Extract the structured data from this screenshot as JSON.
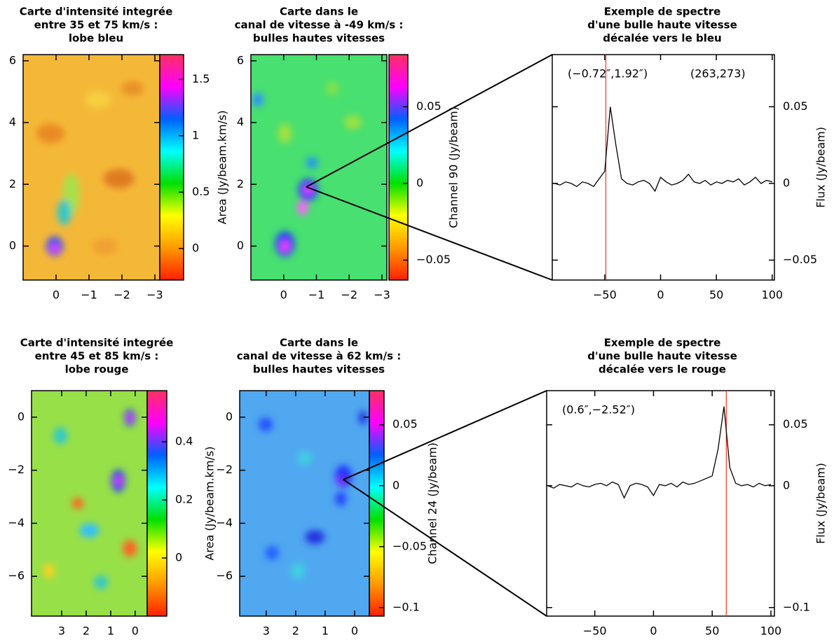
{
  "chart_data": [
    {
      "type": "heatmap",
      "title": [
        "Carte d'intensité integrée",
        "entre 35 et 75 km/s :",
        "lobe bleu"
      ],
      "xlim": [
        1.0,
        -3.15
      ],
      "xticks": [
        0,
        {
          "value": -1,
          "label": "−1"
        },
        {
          "value": -2,
          "label": "−2"
        },
        {
          "value": -3,
          "label": "−3"
        }
      ],
      "ylim": [
        -1.1,
        6.2
      ],
      "yticks": [
        0,
        2,
        4,
        6
      ],
      "colorbar": {
        "lim": [
          -0.28,
          1.72
        ],
        "ticks": [
          0,
          0.5,
          1,
          1.5
        ]
      },
      "colormap": [
        "#ff2000",
        "#ff9900",
        "#ffff00",
        "#00e000",
        "#00ffff",
        "#0060ff",
        "#ff00ff",
        "#ff3060"
      ]
    },
    {
      "type": "heatmap",
      "title": [
        "Carte dans le",
        "canal de vitesse à -49 km/s :",
        "bulles hautes vitesses"
      ],
      "xlim": [
        1.0,
        -3.15
      ],
      "xticks": [
        0,
        {
          "value": -1,
          "label": "−1"
        },
        {
          "value": -2,
          "label": "−2"
        },
        {
          "value": -3,
          "label": "−3"
        }
      ],
      "ylim": [
        -1.1,
        6.2
      ],
      "yticks": [
        0,
        2,
        4,
        6
      ],
      "ylabel": "Area (Jy/beam.km/s)",
      "colorbar": {
        "lim": [
          -0.063,
          0.084
        ],
        "ticks": [
          {
            "value": -0.05,
            "label": "−0.05"
          },
          0,
          0.05
        ],
        "label": "Channel 90 (Jy/beam)"
      },
      "colormap": [
        "#ff2000",
        "#ff9900",
        "#ffff00",
        "#00e000",
        "#00ffff",
        "#0060ff",
        "#ff00ff",
        "#ff3060"
      ]
    },
    {
      "type": "line",
      "title": [
        "Exemple de spectre",
        "d'une bulle haute vitesse",
        "décalée vers le bleu"
      ],
      "xlim": [
        -97,
        102
      ],
      "xticks": [
        {
          "value": -50,
          "label": "−50"
        },
        0,
        50,
        100
      ],
      "ylim": [
        -0.063,
        0.084
      ],
      "yticks": [
        {
          "value": -0.05,
          "label": "−0.05"
        },
        0,
        0.05
      ],
      "ylabel": "Flux (Jy/beam)",
      "annotations": [
        "(−0.72″,1.92″)",
        "(263,273)"
      ],
      "marker_x": -49,
      "marker_color": "#ff3020",
      "color": "#000000",
      "x": [
        -95,
        -90,
        -85,
        -80,
        -75,
        -70,
        -65,
        -60,
        -55,
        -50,
        -45,
        -40,
        -35,
        -30,
        -25,
        -20,
        -15,
        -10,
        -5,
        0,
        5,
        10,
        15,
        20,
        25,
        30,
        35,
        40,
        45,
        50,
        55,
        60,
        65,
        70,
        75,
        80,
        85,
        90,
        95,
        100
      ],
      "values": [
        0,
        -0.001,
        0.001,
        0,
        -0.002,
        0.001,
        0,
        -0.002,
        0.003,
        0.008,
        0.05,
        0.025,
        0.003,
        0,
        -0.001,
        0.001,
        0.002,
        0,
        -0.005,
        0.004,
        0.001,
        -0.001,
        0,
        0.002,
        0.006,
        0.001,
        0,
        0.002,
        -0.001,
        0.001,
        0,
        0.002,
        0.001,
        0.003,
        -0.001,
        0.001,
        0.004,
        0,
        0.002,
        0.001
      ]
    },
    {
      "type": "heatmap",
      "title": [
        "Carte d'intensité integrée",
        "entre 45 et 85 km/s :",
        "lobe rouge"
      ],
      "xlim": [
        4.23,
        -0.49
      ],
      "xticks": [
        3,
        2,
        1,
        0
      ],
      "ylim": [
        -7.5,
        1.0
      ],
      "yticks": [
        0,
        {
          "value": -2,
          "label": "−2"
        },
        {
          "value": -4,
          "label": "−4"
        },
        {
          "value": -6,
          "label": "−6"
        }
      ],
      "colorbar": {
        "lim": [
          -0.2,
          0.576
        ],
        "ticks": [
          0,
          0.2,
          0.4
        ]
      },
      "colormap": [
        "#ff2000",
        "#ff9900",
        "#ffff00",
        "#00e000",
        "#00ffff",
        "#0060ff",
        "#ff00ff",
        "#ff3060"
      ]
    },
    {
      "type": "heatmap",
      "title": [
        "Carte dans le",
        "canal de vitesse à 62 km/s :",
        "bulles hautes vitesses"
      ],
      "xlim": [
        3.9,
        -0.5
      ],
      "xticks": [
        3,
        2,
        1,
        0
      ],
      "ylim": [
        -7.5,
        1.0
      ],
      "yticks": [
        0,
        {
          "value": -2,
          "label": "−2"
        },
        {
          "value": -4,
          "label": "−4"
        },
        {
          "value": -6,
          "label": "−6"
        }
      ],
      "ylabel": "Area (Jy/beam.km/s)",
      "colorbar": {
        "lim": [
          -0.107,
          0.078
        ],
        "ticks": [
          {
            "value": -0.1,
            "label": "−0.1"
          },
          {
            "value": -0.05,
            "label": "−0.05"
          },
          0,
          0.05
        ],
        "label": "Channel 24 (Jy/beam)"
      },
      "colormap": [
        "#ff2000",
        "#ff9900",
        "#ffff00",
        "#00e000",
        "#00ffff",
        "#0060ff",
        "#ff00ff",
        "#ff3060"
      ]
    },
    {
      "type": "line",
      "title": [
        "Exemple de spectre",
        "d'une bulle haute vitesse",
        "décalée vers le rouge"
      ],
      "xlim": [
        -91,
        103
      ],
      "xticks": [
        {
          "value": -50,
          "label": "−50"
        },
        0,
        50,
        100
      ],
      "ylim": [
        -0.107,
        0.078
      ],
      "yticks": [
        {
          "value": -0.1,
          "label": "−0.1"
        },
        0,
        0.05
      ],
      "ylabel": "Flux (Jy/beam)",
      "annotations": [
        "(0.6″,−2.52″)"
      ],
      "marker_x": 62,
      "marker_color": "#ff3020",
      "color": "#000000",
      "x": [
        -90,
        -85,
        -80,
        -75,
        -70,
        -65,
        -60,
        -55,
        -50,
        -45,
        -40,
        -35,
        -30,
        -25,
        -20,
        -15,
        -10,
        -5,
        0,
        5,
        10,
        15,
        20,
        25,
        30,
        35,
        40,
        45,
        50,
        55,
        60,
        65,
        70,
        75,
        80,
        85,
        90,
        95,
        100
      ],
      "values": [
        0,
        -0.002,
        0.001,
        0,
        -0.001,
        0.002,
        0,
        -0.001,
        0.001,
        0.002,
        0,
        0.003,
        0.001,
        -0.01,
        0,
        0.002,
        0.001,
        -0.001,
        -0.008,
        0.001,
        0,
        0.002,
        -0.001,
        0.003,
        0.001,
        0.002,
        0.004,
        0.006,
        0.008,
        0.03,
        0.065,
        0.015,
        0.002,
        0,
        0.001,
        -0.001,
        0.002,
        0,
        0.001
      ]
    }
  ]
}
